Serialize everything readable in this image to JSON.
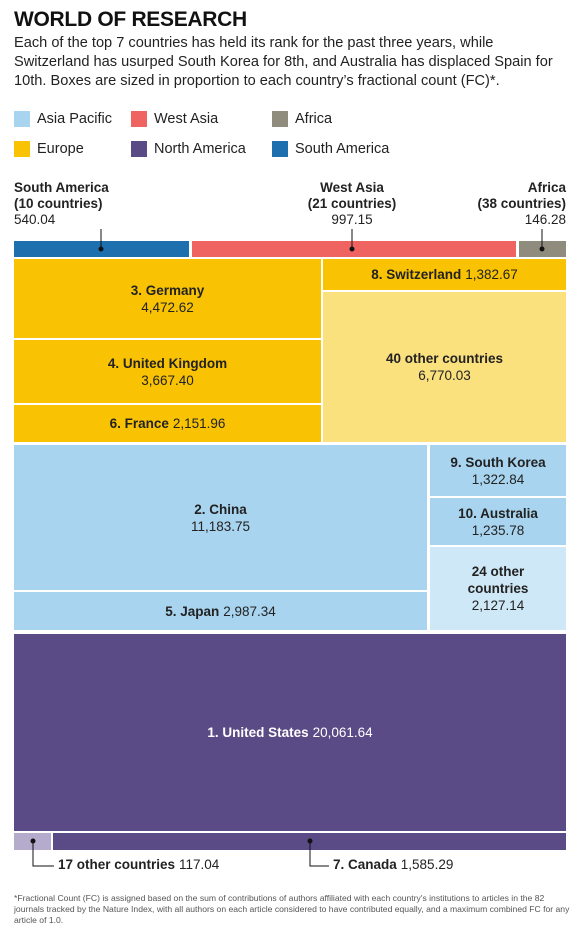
{
  "chart_data": {
    "type": "treemap",
    "title": "WORLD OF RESEARCH",
    "subtitle": "Each of the top 7 countries has held its rank for the past three years, while Switzerland has usurped South Korea for 8th, and Australia has displaced Spain for 10th. Boxes are sized in proportion to each country’s fractional count (FC)*.",
    "legend": [
      {
        "name": "Asia Pacific",
        "color": "#a8d4ef"
      },
      {
        "name": "West Asia",
        "color": "#ef6461"
      },
      {
        "name": "Africa",
        "color": "#8f8c7e"
      },
      {
        "name": "Europe",
        "color": "#f9c304"
      },
      {
        "name": "North America",
        "color": "#5a4a86"
      },
      {
        "name": "South America",
        "color": "#1d6fae"
      }
    ],
    "items": [
      {
        "name": "South America",
        "note": "(10 countries)",
        "value": 540.04,
        "color": "#1d6fae"
      },
      {
        "name": "West Asia",
        "note": "(21 countries)",
        "value": 997.15,
        "color": "#ef6461"
      },
      {
        "name": "Africa",
        "note": "(38 countries)",
        "value": 146.28,
        "color": "#8f8c7e"
      },
      {
        "name": "3. Germany",
        "value": 4472.62,
        "value_label": "4,472.62",
        "color": "#f9c304"
      },
      {
        "name": "4. United Kingdom",
        "value": 3667.4,
        "value_label": "3,667.40",
        "color": "#f9c304"
      },
      {
        "name": "6. France",
        "value": 2151.96,
        "value_label": "2,151.96",
        "color": "#f9c304"
      },
      {
        "name": "8. Switzerland",
        "value": 1382.67,
        "value_label": "1,382.67",
        "color": "#f9c304"
      },
      {
        "name": "40 other countries",
        "value": 6770.03,
        "value_label": "6,770.03",
        "color": "#fbe07e"
      },
      {
        "name": "2. China",
        "value": 11183.75,
        "value_label": "11,183.75",
        "color": "#a8d4ef"
      },
      {
        "name": "5. Japan",
        "value": 2987.34,
        "value_label": "2,987.34",
        "color": "#a8d4ef"
      },
      {
        "name": "9. South Korea",
        "value": 1322.84,
        "value_label": "1,322.84",
        "color": "#a8d4ef"
      },
      {
        "name": "10. Australia",
        "value": 1235.78,
        "value_label": "1,235.78",
        "color": "#a8d4ef"
      },
      {
        "name": "24 other countries",
        "value": 2127.14,
        "value_label": "2,127.14",
        "color": "#cfe8f7"
      },
      {
        "name": "1. United States",
        "value": 20061.64,
        "value_label": "20,061.64",
        "color": "#5a4a86"
      },
      {
        "name": "17 other countries",
        "value": 117.04,
        "color": "#b4abcd"
      },
      {
        "name": "7. Canada",
        "value": 1585.29,
        "value_label": "1,585.29",
        "color": "#5a4a86"
      }
    ],
    "footnote": "*Fractional Count (FC) is assigned based on the sum of contributions of authors affiliated with each country's institutions to articles in the 82 journals tracked by the Nature Index, with all authors on each article considered to have contributed equally, and a maximum combined FC for any article of 1.0."
  }
}
